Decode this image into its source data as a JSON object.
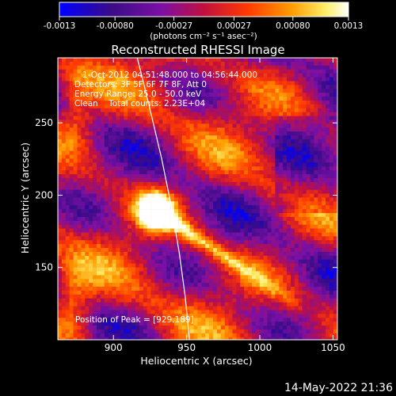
{
  "chart_data": {
    "type": "heatmap",
    "title": "Reconstructed RHESSI Image",
    "xlabel": "Heliocentric X (arcsec)",
    "ylabel": "Heliocentric Y (arcsec)",
    "xlim": [
      862,
      1053
    ],
    "ylim": [
      100,
      295
    ],
    "x_ticks": [
      900,
      950,
      1000,
      1050
    ],
    "y_ticks": [
      150,
      200,
      250
    ],
    "colorbar": {
      "min": -0.0013,
      "max": 0.0013,
      "tick_values": [
        -0.0013,
        -0.0008,
        -0.00027,
        0.00027,
        0.0008,
        0.0013
      ],
      "tick_labels": [
        "-0.0013",
        "-0.00080",
        "-0.00027",
        "0.00027",
        "0.00080",
        "0.0013"
      ],
      "units": "(photons cm⁻² s⁻¹ asec⁻²)",
      "colormap": [
        "#0000ff",
        "#3a0c86",
        "#7a10a6",
        "#c0103f",
        "#ff3a00",
        "#ff9a00",
        "#ffee66",
        "#ffffff"
      ]
    },
    "annotations": [
      "1-Oct-2012 04:51:48.000 to 04:56:44.000",
      "Detectors: 3F 5F 6F 7F 8F, Att 0",
      "Energy Range: 25.0 - 50.0 keV",
      "Clean    Total counts: 2.23E+04"
    ],
    "peak_label": "Position of Peak = [929,189]",
    "peak": {
      "x": 929,
      "y": 189
    },
    "limb_curve": [
      [
        915,
        300
      ],
      [
        920,
        280
      ],
      [
        926,
        255
      ],
      [
        933,
        225
      ],
      [
        940,
        190
      ],
      [
        945,
        160
      ],
      [
        949,
        130
      ],
      [
        952,
        100
      ]
    ]
  },
  "footer": {
    "timestamp": "14-May-2022 21:36"
  }
}
